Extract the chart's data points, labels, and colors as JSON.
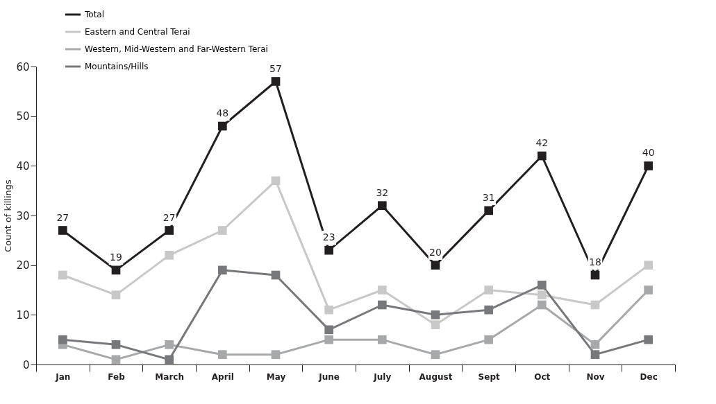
{
  "chart_data": {
    "type": "line",
    "ylabel": "Count of killings",
    "categories": [
      "Jan",
      "Feb",
      "March",
      "April",
      "May",
      "June",
      "July",
      "August",
      "Sept",
      "Oct",
      "Nov",
      "Dec"
    ],
    "ylim": [
      0,
      60
    ],
    "yticks": [
      0,
      10,
      20,
      30,
      40,
      50,
      60
    ],
    "grid": false,
    "legend": "top left",
    "marker": "square",
    "line_style": "solid",
    "series": [
      {
        "name": "Total",
        "color": "#231f20",
        "values": [
          27,
          19,
          27,
          48,
          57,
          23,
          32,
          20,
          31,
          42,
          18,
          40
        ],
        "value_labels": [
          "27",
          "19",
          "27",
          "48",
          "57",
          "23",
          "32",
          "20",
          "31",
          "42",
          "18",
          "40"
        ]
      },
      {
        "name": "Eastern and Central Terai",
        "color": "#c8c8c8",
        "values": [
          18,
          14,
          22,
          27,
          37,
          11,
          15,
          8,
          15,
          14,
          12,
          20
        ]
      },
      {
        "name": "Western, Mid-Western and Far-Western Terai",
        "color": "#a7a8aa",
        "values": [
          4,
          1,
          4,
          2,
          2,
          5,
          5,
          2,
          5,
          12,
          4,
          15
        ]
      },
      {
        "name": "Mountains/Hills",
        "color": "#77787b",
        "values": [
          5,
          4,
          1,
          19,
          18,
          7,
          12,
          10,
          11,
          16,
          2,
          5
        ]
      }
    ]
  }
}
